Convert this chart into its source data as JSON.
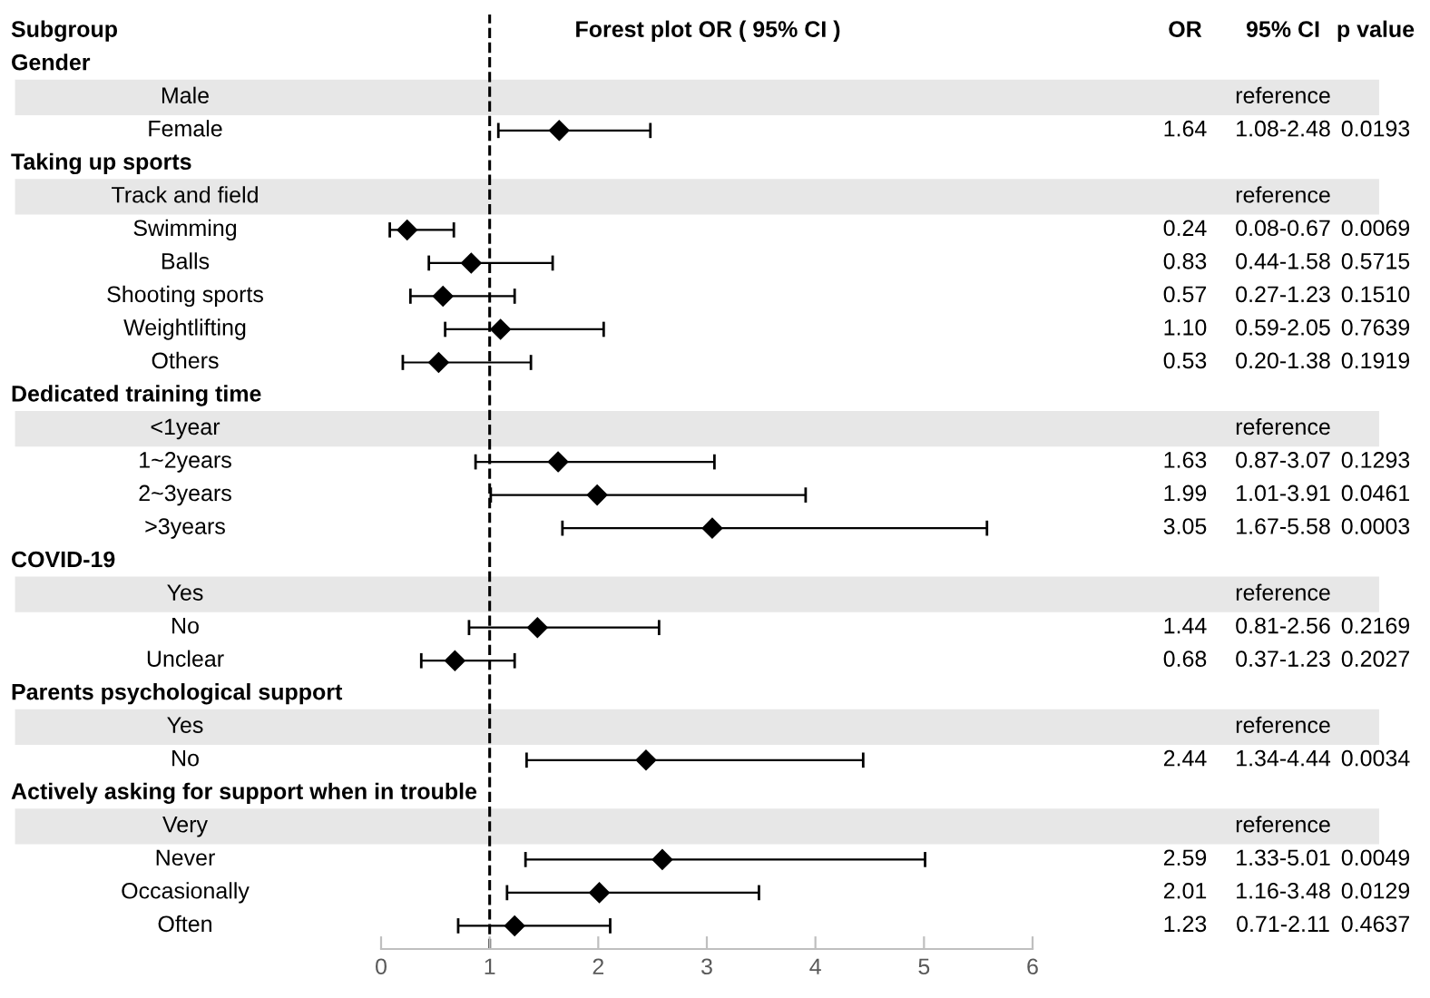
{
  "chart_data": {
    "type": "scatter",
    "orientation": "horizontal",
    "title": "Forest plot OR ( 95% CI )",
    "ylabel": "Subgroup",
    "categories": [
      null,
      "Male",
      "Female",
      null,
      "Track and field",
      "Swimming",
      "Balls",
      "Shooting sports",
      "Weightlifting",
      "Others",
      null,
      "<1year",
      "1~2years",
      "2~3years",
      ">3years",
      null,
      "Yes",
      "No",
      "Unclear",
      null,
      "Yes",
      "No",
      null,
      "Very",
      "Never",
      "Occasionally",
      "Often"
    ],
    "series": [
      {
        "color": "#000000",
        "values": [
          null,
          null,
          1.64,
          null,
          null,
          0.24,
          0.83,
          0.57,
          1.1,
          0.53,
          null,
          null,
          1.63,
          1.99,
          3.05,
          null,
          null,
          1.44,
          0.68,
          null,
          null,
          2.44,
          null,
          null,
          2.59,
          2.01,
          1.23
        ],
        "errors": [
          null,
          null,
          [
            1.08,
            2.48
          ],
          null,
          null,
          [
            0.08,
            0.67
          ],
          [
            0.44,
            1.58
          ],
          [
            0.27,
            1.23
          ],
          [
            0.59,
            2.05
          ],
          [
            0.2,
            1.38
          ],
          null,
          null,
          [
            0.87,
            3.07
          ],
          [
            1.01,
            3.91
          ],
          [
            1.67,
            5.58
          ],
          null,
          null,
          [
            0.81,
            2.56
          ],
          [
            0.37,
            1.23
          ],
          null,
          null,
          [
            1.34,
            4.44
          ],
          null,
          null,
          [
            1.33,
            5.01
          ],
          [
            1.16,
            3.48
          ],
          [
            0.71,
            2.11
          ]
        ],
        "value_labels": [
          null,
          null,
          "1.64",
          null,
          null,
          "0.24",
          "0.83",
          "0.57",
          "1.10",
          "0.53",
          null,
          null,
          "1.63",
          "1.99",
          "3.05",
          null,
          null,
          "1.44",
          "0.68",
          null,
          null,
          "2.44",
          null,
          null,
          "2.59",
          "2.01",
          "1.23"
        ]
      }
    ],
    "marker": "diamond",
    "xlim": [
      0,
      6
    ],
    "xticks": [
      0,
      1,
      2,
      3,
      4,
      5,
      6
    ],
    "ref_lines": [
      {
        "axis": "x",
        "value": 1,
        "line_style": "dashed",
        "color": "#000000"
      }
    ],
    "annotations": [
      "OR",
      "95% CI",
      "p value",
      "Gender",
      "Taking up sports",
      "Dedicated training time",
      "COVID-19",
      "Parents psychological support",
      "Actively asking for support when in trouble",
      "reference",
      "reference",
      "reference",
      "reference",
      "reference",
      "reference",
      "1.08-2.48",
      "0.0193",
      "0.08-0.67",
      "0.0069",
      "0.44-1.58",
      "0.5715",
      "0.27-1.23",
      "0.1510",
      "0.59-2.05",
      "0.7639",
      "0.20-1.38",
      "0.1919",
      "0.87-3.07",
      "0.1293",
      "1.01-3.91",
      "0.0461",
      "1.67-5.58",
      "0.0003",
      "0.81-2.56",
      "0.2169",
      "0.37-1.23",
      "0.2027",
      "1.34-4.44",
      "0.0034",
      "1.33-5.01",
      "0.0049",
      "1.16-3.48",
      "0.0129",
      "0.71-2.11",
      "0.4637"
    ]
  }
}
